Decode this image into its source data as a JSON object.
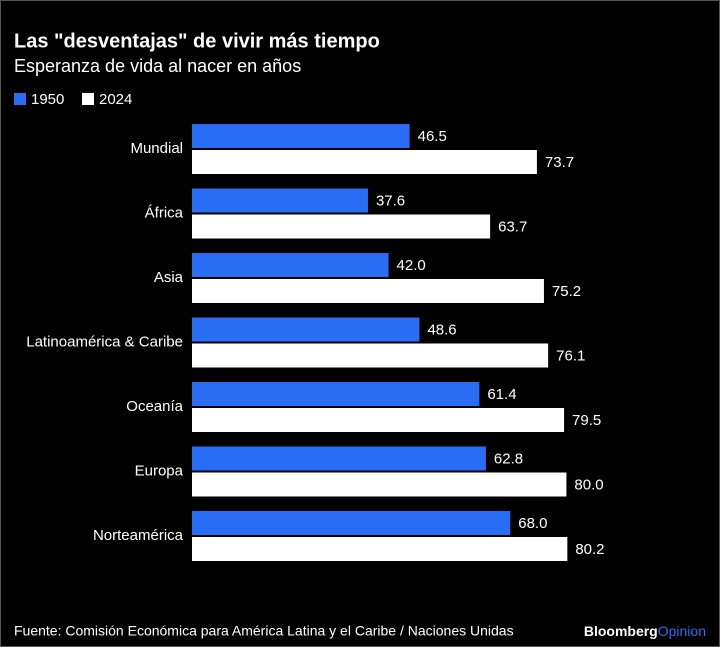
{
  "chart_data": {
    "type": "hbar",
    "title": "Las \"desventajas\" de vivir más tiempo",
    "subtitle": "Esperanza de vida al nacer en años",
    "categories": [
      "Mundial",
      "África",
      "Asia",
      "Latinoamérica & Caribe",
      "Oceanía",
      "Europa",
      "Norteamérica"
    ],
    "series": [
      {
        "name": "1950",
        "color": "#2a6df5",
        "values": [
          46.5,
          37.6,
          42.0,
          48.6,
          61.4,
          62.8,
          68.0
        ],
        "value_labels": [
          "46.5",
          "37.6",
          "42.0",
          "48.6",
          "61.4",
          "62.8",
          "68.0"
        ]
      },
      {
        "name": "2024",
        "color": "#ffffff",
        "values": [
          73.7,
          63.7,
          75.2,
          76.1,
          79.5,
          80.0,
          80.2
        ],
        "value_labels": [
          "73.7",
          "63.7",
          "75.2",
          "76.1",
          "79.5",
          "80.0",
          "80.2"
        ]
      }
    ],
    "source": "Fuente: Comisión Económica para América Latina y el Caribe / Naciones Unidas",
    "logo": {
      "name": "Bloomberg",
      "suffix": "Opinion"
    }
  }
}
